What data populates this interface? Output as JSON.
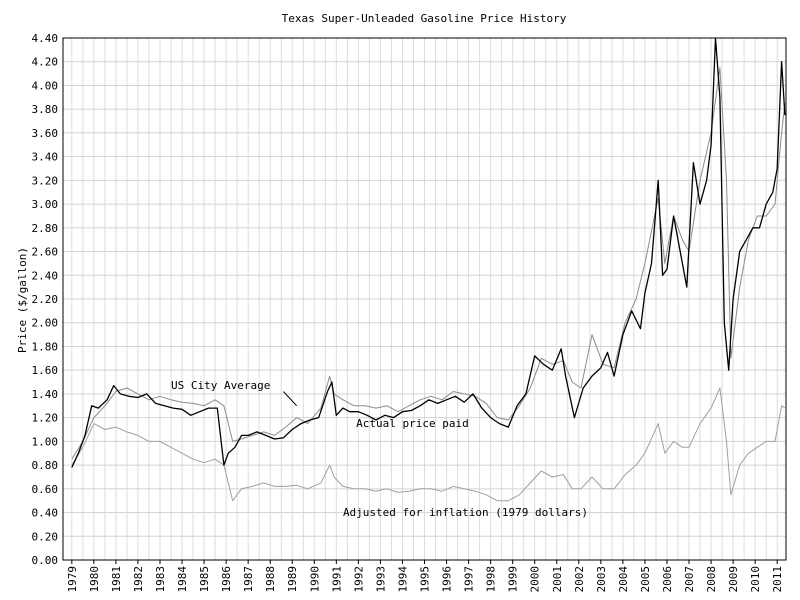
{
  "chart_data": {
    "type": "line",
    "title": "Texas Super-Unleaded Gasoline Price History",
    "xlabel": "",
    "ylabel": "Price ($/gallon)",
    "ylim": [
      0,
      4.4
    ],
    "xlim": [
      1978.6,
      2011.4
    ],
    "yticks": [
      "0.00",
      "0.20",
      "0.40",
      "0.60",
      "0.80",
      "1.00",
      "1.20",
      "1.40",
      "1.60",
      "1.80",
      "2.00",
      "2.20",
      "2.40",
      "2.60",
      "2.80",
      "3.00",
      "3.20",
      "3.40",
      "3.60",
      "3.80",
      "4.00",
      "4.20",
      "4.40"
    ],
    "xticks": [
      "1979",
      "1980",
      "1981",
      "1982",
      "1983",
      "1984",
      "1985",
      "1986",
      "1987",
      "1988",
      "1989",
      "1990",
      "1991",
      "1992",
      "1993",
      "1994",
      "1995",
      "1996",
      "1997",
      "1998",
      "1999",
      "2000",
      "2001",
      "2002",
      "2003",
      "2004",
      "2005",
      "2006",
      "2007",
      "2008",
      "2009",
      "2010",
      "2011"
    ],
    "grid": true,
    "annotations": [
      {
        "text": "US City Average",
        "x": 1983.5,
        "y": 1.44
      },
      {
        "text": "Actual price paid",
        "x": 1991.9,
        "y": 1.12
      },
      {
        "text": "Adjusted for inflation (1979 dollars)",
        "x": 1991.3,
        "y": 0.37
      }
    ],
    "series": [
      {
        "name": "Actual price paid",
        "color": "#000000",
        "x": [
          1979.0,
          1979.3,
          1979.6,
          1979.9,
          1980.2,
          1980.6,
          1980.9,
          1981.2,
          1981.6,
          1982.0,
          1982.4,
          1982.8,
          1983.2,
          1983.6,
          1984.0,
          1984.4,
          1984.8,
          1985.2,
          1985.6,
          1985.9,
          1986.1,
          1986.4,
          1986.7,
          1987.0,
          1987.4,
          1987.8,
          1988.2,
          1988.6,
          1989.0,
          1989.4,
          1989.8,
          1990.2,
          1990.6,
          1990.8,
          1991.0,
          1991.3,
          1991.6,
          1992.0,
          1992.4,
          1992.8,
          1993.2,
          1993.6,
          1994.0,
          1994.4,
          1994.8,
          1995.2,
          1995.6,
          1996.0,
          1996.4,
          1996.8,
          1997.2,
          1997.6,
          1998.0,
          1998.4,
          1998.8,
          1999.2,
          1999.6,
          2000.0,
          2000.4,
          2000.8,
          2001.2,
          2001.4,
          2001.8,
          2002.2,
          2002.6,
          2003.0,
          2003.3,
          2003.6,
          2004.0,
          2004.4,
          2004.8,
          2005.0,
          2005.3,
          2005.6,
          2005.8,
          2006.0,
          2006.3,
          2006.6,
          2006.9,
          2007.2,
          2007.5,
          2007.8,
          2008.0,
          2008.2,
          2008.4,
          2008.6,
          2008.8,
          2009.0,
          2009.3,
          2009.6,
          2009.9,
          2010.2,
          2010.5,
          2010.8,
          2011.0,
          2011.2,
          2011.35
        ],
        "values": [
          0.78,
          0.9,
          1.05,
          1.3,
          1.28,
          1.35,
          1.47,
          1.4,
          1.38,
          1.37,
          1.4,
          1.32,
          1.3,
          1.28,
          1.27,
          1.22,
          1.25,
          1.28,
          1.28,
          0.8,
          0.9,
          0.95,
          1.05,
          1.05,
          1.08,
          1.05,
          1.02,
          1.03,
          1.1,
          1.15,
          1.18,
          1.2,
          1.42,
          1.5,
          1.22,
          1.28,
          1.25,
          1.25,
          1.22,
          1.18,
          1.22,
          1.2,
          1.25,
          1.26,
          1.3,
          1.35,
          1.32,
          1.35,
          1.38,
          1.33,
          1.4,
          1.28,
          1.2,
          1.15,
          1.12,
          1.3,
          1.4,
          1.72,
          1.65,
          1.6,
          1.78,
          1.55,
          1.2,
          1.45,
          1.55,
          1.62,
          1.75,
          1.55,
          1.9,
          2.1,
          1.95,
          2.25,
          2.5,
          3.2,
          2.4,
          2.45,
          2.9,
          2.6,
          2.3,
          3.35,
          3.0,
          3.2,
          3.5,
          4.4,
          3.9,
          2.0,
          1.6,
          2.2,
          2.6,
          2.7,
          2.8,
          2.8,
          3.0,
          3.1,
          3.3,
          4.2,
          3.75
        ]
      },
      {
        "name": "US City Average",
        "color": "#8c8c8c",
        "x": [
          1979.0,
          1979.5,
          1980.0,
          1980.5,
          1981.0,
          1981.5,
          1982.0,
          1982.5,
          1983.0,
          1983.5,
          1984.0,
          1984.5,
          1985.0,
          1985.5,
          1985.9,
          1986.3,
          1986.7,
          1987.2,
          1987.7,
          1988.2,
          1988.7,
          1989.2,
          1989.7,
          1990.3,
          1990.7,
          1990.9,
          1991.3,
          1991.8,
          1992.3,
          1992.8,
          1993.3,
          1993.8,
          1994.3,
          1994.8,
          1995.3,
          1995.8,
          1996.3,
          1996.8,
          1997.3,
          1997.8,
          1998.3,
          1998.8,
          1999.3,
          1999.8,
          2000.3,
          2000.8,
          2001.3,
          2001.7,
          2002.1,
          2002.6,
          2003.1,
          2003.6,
          2004.1,
          2004.6,
          2005.0,
          2005.6,
          2005.9,
          2006.3,
          2006.7,
          2007.0,
          2007.5,
          2008.0,
          2008.4,
          2008.7,
          2008.9,
          2009.3,
          2009.7,
          2010.1,
          2010.5,
          2010.9,
          2011.2,
          2011.35
        ],
        "values": [
          0.85,
          1.0,
          1.2,
          1.3,
          1.42,
          1.45,
          1.4,
          1.35,
          1.38,
          1.35,
          1.33,
          1.32,
          1.3,
          1.35,
          1.3,
          1.0,
          1.02,
          1.05,
          1.08,
          1.05,
          1.12,
          1.2,
          1.15,
          1.28,
          1.55,
          1.4,
          1.35,
          1.3,
          1.3,
          1.28,
          1.3,
          1.25,
          1.3,
          1.35,
          1.38,
          1.35,
          1.42,
          1.4,
          1.38,
          1.32,
          1.2,
          1.18,
          1.3,
          1.45,
          1.7,
          1.65,
          1.68,
          1.5,
          1.45,
          1.9,
          1.65,
          1.62,
          2.0,
          2.2,
          2.5,
          3.05,
          2.5,
          2.9,
          2.7,
          2.6,
          3.2,
          3.6,
          4.15,
          3.2,
          1.7,
          2.3,
          2.7,
          2.9,
          2.9,
          3.0,
          3.6,
          3.85
        ]
      },
      {
        "name": "Adjusted for inflation (1979 dollars)",
        "color": "#a0a0a0",
        "x": [
          1979.0,
          1979.5,
          1980.0,
          1980.5,
          1981.0,
          1981.5,
          1982.0,
          1982.5,
          1983.0,
          1983.5,
          1984.0,
          1984.5,
          1985.0,
          1985.5,
          1985.9,
          1986.3,
          1986.7,
          1987.2,
          1987.7,
          1988.2,
          1988.7,
          1989.2,
          1989.7,
          1990.3,
          1990.7,
          1990.9,
          1991.3,
          1991.8,
          1992.3,
          1992.8,
          1993.3,
          1993.8,
          1994.3,
          1994.8,
          1995.3,
          1995.8,
          1996.3,
          1996.8,
          1997.3,
          1997.8,
          1998.3,
          1998.8,
          1999.3,
          1999.8,
          2000.3,
          2000.8,
          2001.3,
          2001.7,
          2002.1,
          2002.6,
          2003.1,
          2003.6,
          2004.1,
          2004.6,
          2005.0,
          2005.6,
          2005.9,
          2006.3,
          2006.7,
          2007.0,
          2007.5,
          2008.0,
          2008.4,
          2008.7,
          2008.9,
          2009.3,
          2009.7,
          2010.1,
          2010.5,
          2010.9,
          2011.2,
          2011.35
        ],
        "values": [
          0.8,
          0.95,
          1.15,
          1.1,
          1.12,
          1.08,
          1.05,
          1.0,
          1.0,
          0.95,
          0.9,
          0.85,
          0.82,
          0.85,
          0.8,
          0.5,
          0.6,
          0.62,
          0.65,
          0.62,
          0.62,
          0.63,
          0.6,
          0.65,
          0.8,
          0.7,
          0.62,
          0.6,
          0.6,
          0.58,
          0.6,
          0.57,
          0.58,
          0.6,
          0.6,
          0.58,
          0.62,
          0.6,
          0.58,
          0.55,
          0.5,
          0.5,
          0.55,
          0.65,
          0.75,
          0.7,
          0.72,
          0.6,
          0.6,
          0.7,
          0.6,
          0.6,
          0.72,
          0.8,
          0.9,
          1.15,
          0.9,
          1.0,
          0.95,
          0.95,
          1.15,
          1.28,
          1.45,
          1.0,
          0.55,
          0.8,
          0.9,
          0.95,
          1.0,
          1.0,
          1.3,
          1.28
        ]
      }
    ]
  }
}
